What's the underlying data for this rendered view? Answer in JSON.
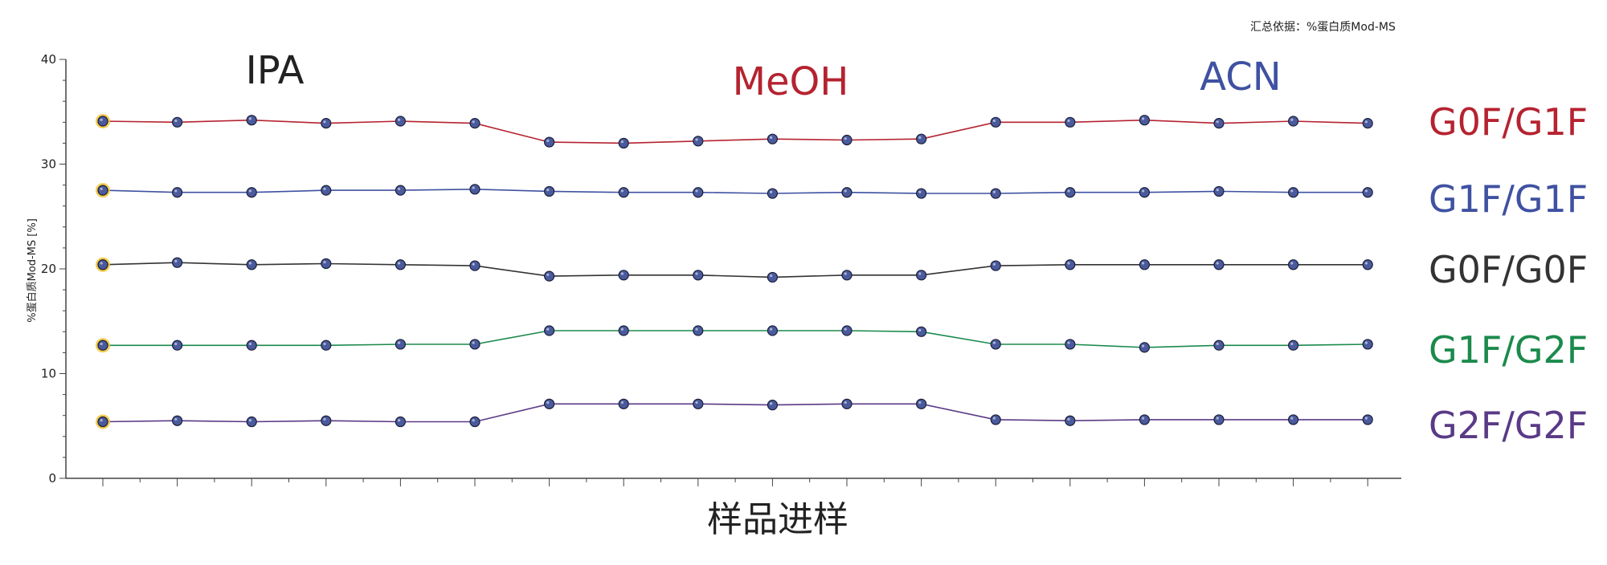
{
  "chart_data": {
    "type": "line",
    "summary_note": "汇总依据：%蛋白质Mod-MS",
    "ylabel": "%蛋白质Mod-MS [%]",
    "xlabel": "样品进样",
    "ylim": [
      0,
      40
    ],
    "yticks": [
      0,
      10,
      20,
      30,
      40
    ],
    "x": [
      1,
      2,
      3,
      4,
      5,
      6,
      7,
      8,
      9,
      10,
      11,
      12,
      13,
      14,
      15,
      16,
      17,
      18
    ],
    "groups": [
      {
        "name": "IPA",
        "color": "#222222"
      },
      {
        "name": "MeOH",
        "color": "#b52330"
      },
      {
        "name": "ACN",
        "color": "#3f51a1"
      }
    ],
    "series": [
      {
        "name": "G0F/G1F",
        "color": "#b52330",
        "values": [
          34.1,
          34.0,
          34.2,
          33.9,
          34.1,
          33.9,
          32.1,
          32.0,
          32.2,
          32.4,
          32.3,
          32.4,
          34.0,
          34.0,
          34.2,
          33.9,
          34.1,
          33.9
        ]
      },
      {
        "name": "G1F/G1F",
        "color": "#3f51a1",
        "values": [
          27.5,
          27.3,
          27.3,
          27.5,
          27.5,
          27.6,
          27.4,
          27.3,
          27.3,
          27.2,
          27.3,
          27.2,
          27.2,
          27.3,
          27.3,
          27.4,
          27.3,
          27.3
        ]
      },
      {
        "name": "G0F/G0F",
        "color": "#333333",
        "values": [
          20.4,
          20.6,
          20.4,
          20.5,
          20.4,
          20.3,
          19.3,
          19.4,
          19.4,
          19.2,
          19.4,
          19.4,
          20.3,
          20.4,
          20.4,
          20.4,
          20.4,
          20.4
        ]
      },
      {
        "name": "G1F/G2F",
        "color": "#1b8a4c",
        "values": [
          12.7,
          12.7,
          12.7,
          12.7,
          12.8,
          12.8,
          14.1,
          14.1,
          14.1,
          14.1,
          14.1,
          14.0,
          12.8,
          12.8,
          12.5,
          12.7,
          12.7,
          12.8
        ]
      },
      {
        "name": "G2F/G2F",
        "color": "#5a3a86",
        "values": [
          5.4,
          5.5,
          5.4,
          5.5,
          5.4,
          5.4,
          7.1,
          7.1,
          7.1,
          7.0,
          7.1,
          7.1,
          5.6,
          5.5,
          5.6,
          5.6,
          5.6,
          5.6
        ]
      }
    ],
    "highlight_first_point": true,
    "highlight_color": "#f2c230",
    "marker_color": "#4a5a9c",
    "grid": false
  }
}
